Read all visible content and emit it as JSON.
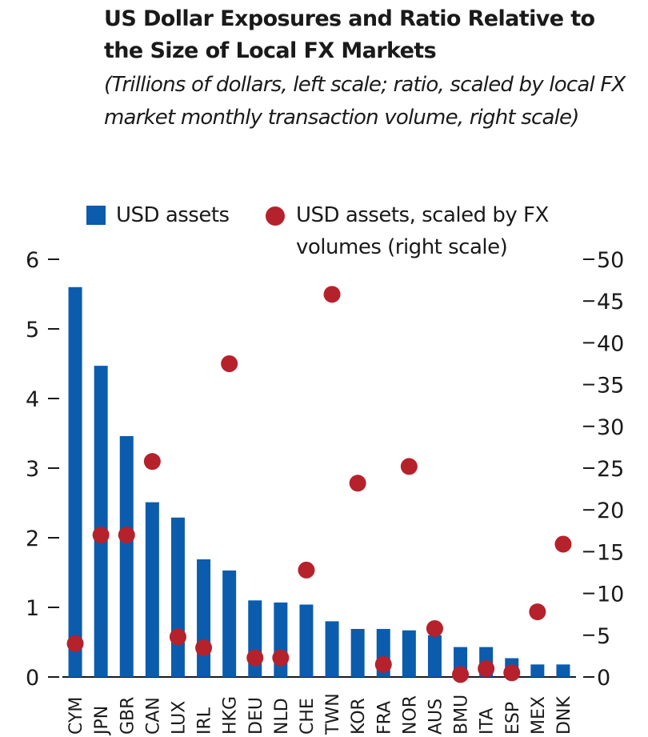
{
  "chart_data": {
    "type": "bar",
    "title": "US Dollar Exposures and Ratio Relative to the Size of Local FX Markets",
    "subtitle": "(Trillions of dollars, left scale; ratio, scaled by local FX market monthly transaction volume, right scale)",
    "categories": [
      "CYM",
      "JPN",
      "GBR",
      "CAN",
      "LUX",
      "IRL",
      "HKG",
      "DEU",
      "NLD",
      "CHE",
      "TWN",
      "KOR",
      "FRA",
      "NOR",
      "AUS",
      "BMU",
      "ITA",
      "ESP",
      "MEX",
      "DNK"
    ],
    "series": [
      {
        "name": "USD assets",
        "type": "bar",
        "axis": "left",
        "color": "#0b5cad",
        "values": [
          5.6,
          4.47,
          3.46,
          2.51,
          2.29,
          1.69,
          1.53,
          1.1,
          1.07,
          1.04,
          0.8,
          0.69,
          0.69,
          0.67,
          0.6,
          0.43,
          0.43,
          0.27,
          0.18,
          0.18
        ]
      },
      {
        "name": "USD assets, scaled by FX volumes (right scale)",
        "type": "scatter",
        "axis": "right",
        "color": "#b5222c",
        "values": [
          4,
          17,
          17,
          25.8,
          4.8,
          3.5,
          37.5,
          2.3,
          2.3,
          12.8,
          45.8,
          23.2,
          1.5,
          25.2,
          5.8,
          0.3,
          1,
          0.5,
          7.8,
          15.9
        ]
      }
    ],
    "y_left": {
      "min": 0,
      "max": 6,
      "ticks": [
        0,
        1,
        2,
        3,
        4,
        5,
        6
      ]
    },
    "y_right": {
      "min": 0,
      "max": 50,
      "ticks": [
        0,
        5,
        10,
        15,
        20,
        25,
        30,
        35,
        40,
        45,
        50
      ]
    },
    "legend": {
      "position": "top-left"
    },
    "grid": false
  }
}
